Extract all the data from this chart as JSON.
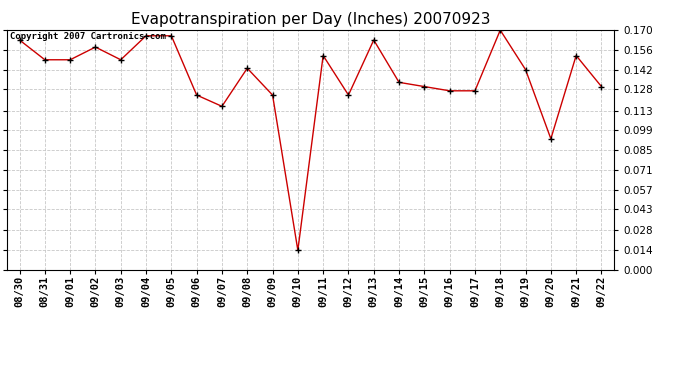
{
  "title": "Evapotranspiration per Day (Inches) 20070923",
  "copyright_text": "Copyright 2007 Cartronics.com",
  "x_labels": [
    "08/30",
    "08/31",
    "09/01",
    "09/02",
    "09/03",
    "09/04",
    "09/05",
    "09/06",
    "09/07",
    "09/08",
    "09/09",
    "09/10",
    "09/11",
    "09/12",
    "09/13",
    "09/14",
    "09/15",
    "09/16",
    "09/17",
    "09/18",
    "09/19",
    "09/20",
    "09/21",
    "09/22"
  ],
  "y_values": [
    0.163,
    0.149,
    0.149,
    0.158,
    0.149,
    0.166,
    0.166,
    0.124,
    0.116,
    0.143,
    0.124,
    0.014,
    0.152,
    0.124,
    0.163,
    0.133,
    0.13,
    0.127,
    0.127,
    0.17,
    0.142,
    0.093,
    0.152,
    0.13
  ],
  "line_color": "#cc0000",
  "marker": "x",
  "marker_color": "#000000",
  "background_color": "#ffffff",
  "grid_color": "#c8c8c8",
  "ylim": [
    0.0,
    0.17
  ],
  "yticks": [
    0.0,
    0.014,
    0.028,
    0.043,
    0.057,
    0.071,
    0.085,
    0.099,
    0.113,
    0.128,
    0.142,
    0.156,
    0.17
  ],
  "title_fontsize": 11,
  "axis_fontsize": 7.5,
  "copyright_fontsize": 6.5
}
